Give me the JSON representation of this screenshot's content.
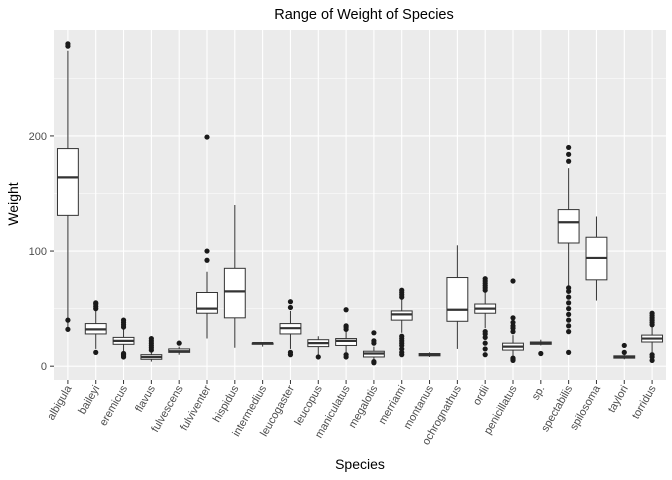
{
  "chart_data": {
    "type": "box",
    "title": "Range of Weight of Species",
    "xlabel": "Species",
    "ylabel": "Weight",
    "ylim": [
      -12,
      292
    ],
    "yticks": [
      0,
      100,
      200
    ],
    "grid": true,
    "legend": "none",
    "colors": {
      "panel": "#ebebeb",
      "grid_major": "#ffffff",
      "box_fill": "#ffffff",
      "line": "#333333",
      "outlier": "#1a1a1a"
    },
    "categories": [
      "albigula",
      "baileyi",
      "eremicus",
      "flavus",
      "fulvescens",
      "fulviventer",
      "hispidus",
      "intermedius",
      "leucogaster",
      "leucopus",
      "maniculatus",
      "megalotis",
      "merriami",
      "montanus",
      "ochrognathus",
      "ordii",
      "penicillatus",
      "sp.",
      "spectabilis",
      "spilosoma",
      "taylori",
      "torridus"
    ],
    "boxes": [
      {
        "category": "albigula",
        "whisker_low": 30,
        "q1": 131,
        "median": 164,
        "q3": 189,
        "whisker_high": 274,
        "outliers": [
          280,
          278,
          40,
          32
        ]
      },
      {
        "category": "baileyi",
        "whisker_low": 15,
        "q1": 28,
        "median": 32,
        "q3": 37,
        "whisker_high": 48,
        "outliers": [
          12,
          50,
          52,
          54,
          55
        ]
      },
      {
        "category": "eremicus",
        "whisker_low": 12,
        "q1": 19,
        "median": 22,
        "q3": 25,
        "whisker_high": 32,
        "outliers": [
          8,
          9,
          10,
          11,
          34,
          36,
          38,
          40
        ]
      },
      {
        "category": "flavus",
        "whisker_low": 4,
        "q1": 6,
        "median": 8,
        "q3": 10,
        "whisker_high": 13,
        "outliers": [
          14,
          16,
          18,
          20,
          22,
          24
        ]
      },
      {
        "category": "fulvescens",
        "whisker_low": 10,
        "q1": 12,
        "median": 13,
        "q3": 15,
        "whisker_high": 17,
        "outliers": [
          20
        ]
      },
      {
        "category": "fulviventer",
        "whisker_low": 24,
        "q1": 46,
        "median": 50,
        "q3": 64,
        "whisker_high": 82,
        "outliers": [
          199,
          100,
          92
        ]
      },
      {
        "category": "hispidus",
        "whisker_low": 16,
        "q1": 42,
        "median": 65,
        "q3": 85,
        "whisker_high": 140,
        "outliers": []
      },
      {
        "category": "intermedius",
        "whisker_low": 17,
        "q1": 19,
        "median": 20,
        "q3": 20,
        "whisker_high": 20,
        "outliers": []
      },
      {
        "category": "leucogaster",
        "whisker_low": 15,
        "q1": 28,
        "median": 33,
        "q3": 37,
        "whisker_high": 48,
        "outliers": [
          10,
          12,
          51,
          56
        ]
      },
      {
        "category": "leucopus",
        "whisker_low": 8,
        "q1": 17,
        "median": 20,
        "q3": 23,
        "whisker_high": 26,
        "outliers": [
          8
        ]
      },
      {
        "category": "maniculatus",
        "whisker_low": 12,
        "q1": 18,
        "median": 22,
        "q3": 24,
        "whisker_high": 30,
        "outliers": [
          8,
          10,
          32,
          34,
          35,
          49
        ]
      },
      {
        "category": "megalotis",
        "whisker_low": 4,
        "q1": 8,
        "median": 11,
        "q3": 13,
        "whisker_high": 17,
        "outliers": [
          3,
          4,
          20,
          22,
          29
        ]
      },
      {
        "category": "merriami",
        "whisker_low": 29,
        "q1": 40,
        "median": 45,
        "q3": 48,
        "whisker_high": 58,
        "outliers": [
          10,
          12,
          15,
          18,
          20,
          22,
          24,
          26,
          60,
          62,
          64,
          66
        ]
      },
      {
        "category": "montanus",
        "whisker_low": 8,
        "q1": 9,
        "median": 10,
        "q3": 11,
        "whisker_high": 12,
        "outliers": []
      },
      {
        "category": "ochrognathus",
        "whisker_low": 15,
        "q1": 39,
        "median": 49,
        "q3": 77,
        "whisker_high": 105,
        "outliers": []
      },
      {
        "category": "ordii",
        "whisker_low": 33,
        "q1": 46,
        "median": 50,
        "q3": 54,
        "whisker_high": 64,
        "outliers": [
          10,
          15,
          20,
          25,
          28,
          30,
          66,
          68,
          70,
          72,
          74,
          76
        ]
      },
      {
        "category": "penicillatus",
        "whisker_low": 8,
        "q1": 14,
        "median": 17,
        "q3": 20,
        "whisker_high": 27,
        "outliers": [
          5,
          6,
          7,
          30,
          33,
          35,
          38,
          42,
          74
        ]
      },
      {
        "category": "sp.",
        "whisker_low": 18,
        "q1": 19,
        "median": 20,
        "q3": 21,
        "whisker_high": 23,
        "outliers": [
          11
        ]
      },
      {
        "category": "spectabilis",
        "whisker_low": 70,
        "q1": 107,
        "median": 125,
        "q3": 136,
        "whisker_high": 172,
        "outliers": [
          12,
          30,
          35,
          40,
          45,
          50,
          55,
          60,
          65,
          68,
          178,
          184,
          190
        ]
      },
      {
        "category": "spilosoma",
        "whisker_low": 57,
        "q1": 75,
        "median": 94,
        "q3": 112,
        "whisker_high": 130,
        "outliers": []
      },
      {
        "category": "taylori",
        "whisker_low": 6,
        "q1": 7,
        "median": 8,
        "q3": 9,
        "whisker_high": 10,
        "outliers": [
          12,
          18
        ]
      },
      {
        "category": "torridus",
        "whisker_low": 12,
        "q1": 21,
        "median": 24,
        "q3": 27,
        "whisker_high": 34,
        "outliers": [
          5,
          8,
          10,
          36,
          38,
          40,
          42,
          44,
          46
        ]
      }
    ]
  }
}
